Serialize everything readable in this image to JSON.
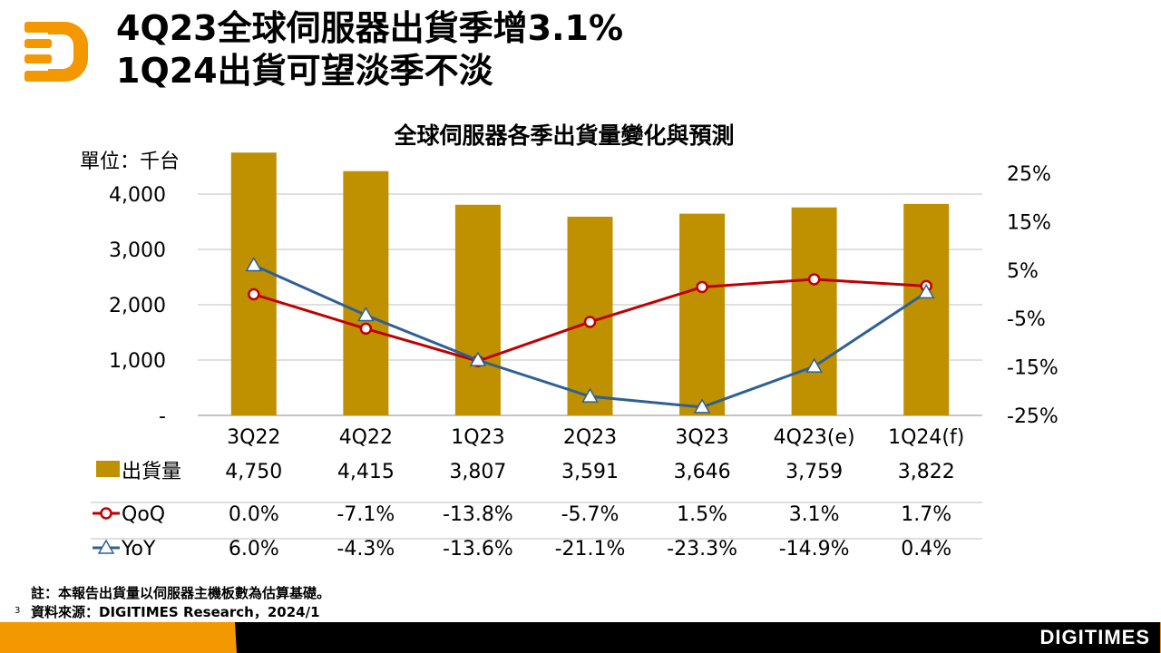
{
  "header": {
    "title_line1": "4Q23全球伺服器出貨季增3.1%",
    "title_line2": "1Q24出貨可望淡季不淡"
  },
  "chart_data": {
    "type": "bar+line",
    "title": "全球伺服器各季出貨量變化與預測",
    "unit_label": "單位：千台",
    "categories": [
      "3Q22",
      "4Q22",
      "1Q23",
      "2Q23",
      "3Q23",
      "4Q23(e)",
      "1Q24(f)"
    ],
    "left_axis": {
      "ticks": [
        "-",
        "1,000",
        "2,000",
        "3,000",
        "4,000"
      ],
      "tick_values": [
        0,
        1000,
        2000,
        3000,
        4000
      ],
      "range": [
        0,
        5000
      ]
    },
    "right_axis": {
      "ticks": [
        "25%",
        "15%",
        "5%",
        "-5%",
        "-15%",
        "-25%"
      ],
      "tick_values": [
        25,
        15,
        5,
        -5,
        -15,
        -25
      ],
      "range": [
        -25,
        25
      ]
    },
    "series": [
      {
        "name": "出貨量",
        "type": "bar",
        "color": "#bf9000",
        "values": [
          4750,
          4415,
          3807,
          3591,
          3646,
          3759,
          3822
        ],
        "labels": [
          "4,750",
          "4,415",
          "3,807",
          "3,591",
          "3,646",
          "3,759",
          "3,822"
        ]
      },
      {
        "name": "QoQ",
        "type": "line",
        "color": "#c00000",
        "values": [
          0.0,
          -7.1,
          -13.8,
          -5.7,
          1.5,
          3.1,
          1.7
        ],
        "labels": [
          "0.0%",
          "-7.1%",
          "-13.8%",
          "-5.7%",
          "1.5%",
          "3.1%",
          "1.7%"
        ]
      },
      {
        "name": "YoY",
        "type": "line",
        "color": "#2e6095",
        "values": [
          6.0,
          -4.3,
          -13.6,
          -21.1,
          -23.3,
          -14.9,
          0.4
        ],
        "labels": [
          "6.0%",
          "-4.3%",
          "-13.6%",
          "-21.1%",
          "-23.3%",
          "-14.9%",
          "0.4%"
        ]
      }
    ],
    "grid": true
  },
  "footer": {
    "note": "註：本報告出貨量以伺服器主機板數為估算基礎。",
    "source": "資料來源：DIGITIMES Research，2024/1",
    "page": "3",
    "brand": "DIGITIMES"
  }
}
